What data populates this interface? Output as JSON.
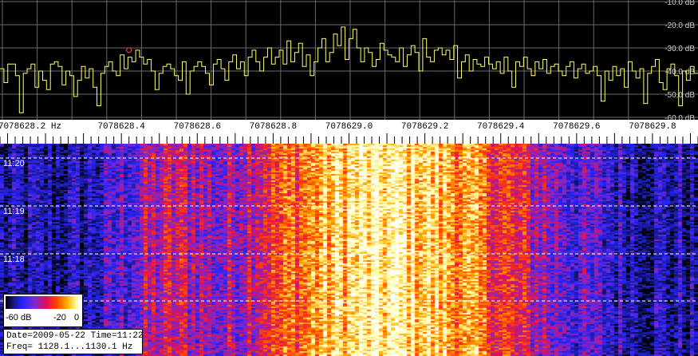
{
  "chart_data": [
    {
      "type": "line",
      "title": "",
      "xlabel": "",
      "ylabel": "",
      "x_unit": "Hz",
      "x_ticks": [
        "7078628.2 Hz",
        "7078628.4",
        "7078628.6",
        "7078628.8",
        "7078629.0",
        "7078629.2",
        "7078629.4",
        "7078629.6",
        "7078629.8"
      ],
      "y_ticks": [
        "-10.0 dB",
        "-20.0 dB",
        "-30.0 dB",
        "-40.0 dB",
        "-50.0 dB",
        "-60.0 dB"
      ],
      "ylim": [
        -60,
        -10
      ],
      "xlim": [
        7078628.08,
        7078629.92
      ],
      "grid": true,
      "series_color": "#ffff66",
      "peak_marker_color": "#ff4444",
      "peak_marker": {
        "x": 7078628.42,
        "y": -31
      },
      "series": [
        {
          "x_start": 7078628.08,
          "x_end": 7078629.92,
          "values_db": [
            -39,
            -45,
            -37,
            -37,
            -42,
            -58,
            -41,
            -39,
            -37,
            -47,
            -40,
            -44,
            -48,
            -37,
            -36,
            -38,
            -46,
            -40,
            -42,
            -51,
            -44,
            -38,
            -43,
            -39,
            -47,
            -55,
            -41,
            -38,
            -36,
            -40,
            -42,
            -33,
            -39,
            -34,
            -36,
            -31,
            -34,
            -37,
            -35,
            -40,
            -48,
            -41,
            -38,
            -37,
            -39,
            -42,
            -44,
            -36,
            -50,
            -40,
            -38,
            -36,
            -38,
            -41,
            -46,
            -37,
            -35,
            -39,
            -44,
            -36,
            -33,
            -39,
            -36,
            -42,
            -34,
            -31,
            -36,
            -40,
            -34,
            -30,
            -37,
            -34,
            -31,
            -37,
            -27,
            -36,
            -32,
            -28,
            -38,
            -33,
            -42,
            -36,
            -30,
            -26,
            -36,
            -32,
            -24,
            -29,
            -21,
            -35,
            -26,
            -22,
            -30,
            -36,
            -30,
            -32,
            -38,
            -35,
            -28,
            -31,
            -33,
            -34,
            -36,
            -30,
            -38,
            -33,
            -29,
            -32,
            -40,
            -26,
            -34,
            -36,
            -31,
            -30,
            -33,
            -31,
            -35,
            -29,
            -43,
            -36,
            -33,
            -40,
            -35,
            -37,
            -38,
            -34,
            -37,
            -39,
            -36,
            -41,
            -34,
            -40,
            -47,
            -36,
            -38,
            -34,
            -39,
            -42,
            -36,
            -39,
            -35,
            -41,
            -38,
            -37,
            -40,
            -42,
            -38,
            -36,
            -43,
            -39,
            -37,
            -41,
            -40,
            -38,
            -42,
            -53,
            -40,
            -44,
            -38,
            -42,
            -39,
            -47,
            -36,
            -40,
            -43,
            -39,
            -54,
            -41,
            -38,
            -35,
            -45,
            -48,
            -39,
            -37,
            -42,
            -55,
            -40,
            -44,
            -38,
            -41
          ]
        }
      ]
    },
    {
      "type": "heatmap",
      "title": "",
      "xlabel": "",
      "ylabel": "",
      "time_labels": [
        "11:20",
        "11:19",
        "11:18"
      ],
      "colorbar_labels": [
        "-60 dB",
        "-20",
        "0"
      ],
      "colorbar_range_db": [
        -60,
        0
      ],
      "colormap": [
        "#000000",
        "#1a1a8c",
        "#2323ff",
        "#7a2ad0",
        "#e0105a",
        "#ff4400",
        "#ffaa00",
        "#ffffaa",
        "#ffffff"
      ],
      "x_range": [
        7078628.08,
        7078629.92
      ],
      "signal_center_hz": 7078629.1,
      "signal_width_hz": 0.3,
      "peak_level_db": -8,
      "noise_floor_db": -52,
      "grid": true
    }
  ],
  "info": {
    "line1": "Date=2009-05-22 Time=11:22",
    "line2": "Freq= 1128.1...1130.1 Hz"
  }
}
